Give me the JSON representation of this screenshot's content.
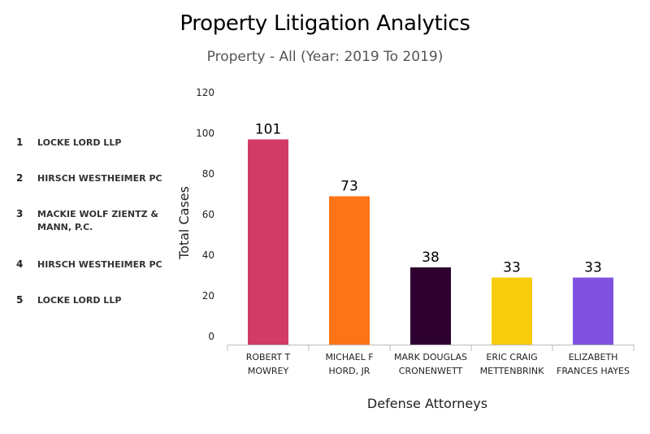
{
  "chart_data": {
    "type": "bar",
    "title": "Property Litigation Analytics",
    "subtitle": "Property - All (Year: 2019 To 2019)",
    "xlabel": "Defense Attorneys",
    "ylabel": "Total Cases",
    "ylim": [
      0,
      120
    ],
    "yticks": [
      0,
      20,
      40,
      60,
      80,
      100,
      120
    ],
    "grid": false,
    "categories": [
      [
        "ROBERT T",
        "MOWREY"
      ],
      [
        "MICHAEL F",
        "HORD, JR"
      ],
      [
        "MARK DOUGLAS",
        "CRONENWETT"
      ],
      [
        "ERIC CRAIG",
        "METTENBRINK"
      ],
      [
        "ELIZABETH",
        "FRANCES HAYES"
      ]
    ],
    "values": [
      101,
      73,
      38,
      33,
      33
    ],
    "value_labels": [
      "101",
      "73",
      "38",
      "33",
      "33"
    ],
    "colors": [
      "#d23a67",
      "#fc7416",
      "#2d0030",
      "#f7cc0c",
      "#7f53e0"
    ]
  },
  "legend": {
    "items": [
      {
        "rank": "1",
        "name": "LOCKE LORD LLP"
      },
      {
        "rank": "2",
        "name": "HIRSCH WESTHEIMER PC"
      },
      {
        "rank": "3",
        "name": "MACKIE WOLF ZIENTZ & MANN, P.C."
      },
      {
        "rank": "4",
        "name": "HIRSCH WESTHEIMER PC"
      },
      {
        "rank": "5",
        "name": "LOCKE LORD LLP"
      }
    ]
  }
}
